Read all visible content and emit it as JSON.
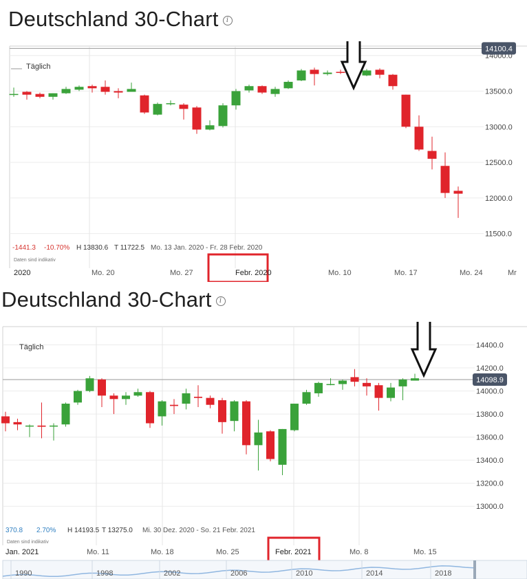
{
  "charts": [
    {
      "heading": "Deutschland 30-Chart",
      "period_label": "Täglich",
      "stats": {
        "change": "-1441.3",
        "change_pct": "-10.70%",
        "high": "H 13830.6",
        "low": "T 11722.5",
        "range": "Mo. 13 Jan. 2020 - Fr. 28 Febr. 2020"
      },
      "data_note": "Daten sind indikativ",
      "current_price_label": "14100.4",
      "highlight_label": "Febr. 2020",
      "x_labels": [
        "2020",
        "Mo. 20",
        "Mo. 27",
        "Febr. 2020",
        "Mo. 10",
        "Mo. 17",
        "Mo. 24",
        "Mr"
      ]
    },
    {
      "heading": "Deutschland 30-Chart",
      "period_label": "Täglich",
      "stats": {
        "change": "370.8",
        "change_pct": "2.70%",
        "high": "H 14193.5",
        "low": "T 13275.0",
        "range": "Mi. 30 Dez. 2020 - So. 21 Febr. 2021"
      },
      "data_note": "Daten sind indikativ",
      "current_price_label": "14098.9",
      "highlight_label": "Febr. 2021",
      "x_labels": [
        "Jan. 2021",
        "Mo. 11",
        "Mo. 18",
        "Mo. 25",
        "Febr. 2021",
        "Mo. 8",
        "Mo. 15"
      ],
      "navigator_years": [
        "1990",
        "1998",
        "2002",
        "2006",
        "2010",
        "2014",
        "2018"
      ]
    }
  ],
  "chart_data": [
    {
      "type": "candlestick",
      "title": "Deutschland 30-Chart",
      "period": "Täglich",
      "x_range": [
        "2020-01-13",
        "2020-02-28"
      ],
      "ylim": [
        11400,
        14200
      ],
      "y_ticks": [
        11500,
        12000,
        12500,
        13000,
        13500,
        14000
      ],
      "reference_line": 14100.4,
      "grid": true,
      "candles": [
        {
          "x": "2020-01-13",
          "open": 13450,
          "high": 13550,
          "low": 13420,
          "close": 13460
        },
        {
          "x": "2020-01-14",
          "open": 13490,
          "high": 13500,
          "low": 13380,
          "close": 13450
        },
        {
          "x": "2020-01-15",
          "open": 13460,
          "high": 13480,
          "low": 13400,
          "close": 13420
        },
        {
          "x": "2020-01-16",
          "open": 13420,
          "high": 13470,
          "low": 13380,
          "close": 13470
        },
        {
          "x": "2020-01-17",
          "open": 13470,
          "high": 13560,
          "low": 13460,
          "close": 13530
        },
        {
          "x": "2020-01-20",
          "open": 13520,
          "high": 13580,
          "low": 13500,
          "close": 13560
        },
        {
          "x": "2020-01-21",
          "open": 13570,
          "high": 13590,
          "low": 13480,
          "close": 13540
        },
        {
          "x": "2020-01-22",
          "open": 13560,
          "high": 13650,
          "low": 13450,
          "close": 13490
        },
        {
          "x": "2020-01-23",
          "open": 13500,
          "high": 13540,
          "low": 13400,
          "close": 13480
        },
        {
          "x": "2020-01-24",
          "open": 13490,
          "high": 13620,
          "low": 13490,
          "close": 13530
        },
        {
          "x": "2020-01-27",
          "open": 13440,
          "high": 13450,
          "low": 13180,
          "close": 13200
        },
        {
          "x": "2020-01-28",
          "open": 13170,
          "high": 13340,
          "low": 13160,
          "close": 13320
        },
        {
          "x": "2020-01-29",
          "open": 13320,
          "high": 13370,
          "low": 13300,
          "close": 13330
        },
        {
          "x": "2020-01-30",
          "open": 13310,
          "high": 13330,
          "low": 13100,
          "close": 13250
        },
        {
          "x": "2020-01-31",
          "open": 13270,
          "high": 13290,
          "low": 12900,
          "close": 12960
        },
        {
          "x": "2020-02-03",
          "open": 12960,
          "high": 13090,
          "low": 12950,
          "close": 13020
        },
        {
          "x": "2020-02-04",
          "open": 13010,
          "high": 13330,
          "low": 12990,
          "close": 13300
        },
        {
          "x": "2020-02-05",
          "open": 13300,
          "high": 13530,
          "low": 13240,
          "close": 13500
        },
        {
          "x": "2020-02-06",
          "open": 13510,
          "high": 13590,
          "low": 13480,
          "close": 13570
        },
        {
          "x": "2020-02-07",
          "open": 13570,
          "high": 13580,
          "low": 13460,
          "close": 13480
        },
        {
          "x": "2020-02-10",
          "open": 13460,
          "high": 13560,
          "low": 13420,
          "close": 13530
        },
        {
          "x": "2020-02-11",
          "open": 13540,
          "high": 13650,
          "low": 13530,
          "close": 13630
        },
        {
          "x": "2020-02-12",
          "open": 13650,
          "high": 13810,
          "low": 13640,
          "close": 13790
        },
        {
          "x": "2020-02-13",
          "open": 13800,
          "high": 13830,
          "low": 13580,
          "close": 13740
        },
        {
          "x": "2020-02-14",
          "open": 13740,
          "high": 13790,
          "low": 13720,
          "close": 13760
        },
        {
          "x": "2020-02-17",
          "open": 13770,
          "high": 13800,
          "low": 13740,
          "close": 13760
        },
        {
          "x": "2020-02-18",
          "open": 13760,
          "high": 13780,
          "low": 13670,
          "close": 13720
        },
        {
          "x": "2020-02-19",
          "open": 13720,
          "high": 13810,
          "low": 13710,
          "close": 13790
        },
        {
          "x": "2020-02-20",
          "open": 13800,
          "high": 13820,
          "low": 13680,
          "close": 13730
        },
        {
          "x": "2020-02-21",
          "open": 13730,
          "high": 13740,
          "low": 13520,
          "close": 13570
        },
        {
          "x": "2020-02-24",
          "open": 13450,
          "high": 13450,
          "low": 12980,
          "close": 13000
        },
        {
          "x": "2020-02-25",
          "open": 13000,
          "high": 13160,
          "low": 12660,
          "close": 12680
        },
        {
          "x": "2020-02-26",
          "open": 12660,
          "high": 12860,
          "low": 12400,
          "close": 12550
        },
        {
          "x": "2020-02-27",
          "open": 12450,
          "high": 12640,
          "low": 12000,
          "close": 12070
        },
        {
          "x": "2020-02-28",
          "open": 12100,
          "high": 12160,
          "low": 11720,
          "close": 12060
        }
      ]
    },
    {
      "type": "candlestick",
      "title": "Deutschland 30-Chart",
      "period": "Täglich",
      "x_range": [
        "2020-12-30",
        "2021-02-21"
      ],
      "ylim": [
        12900,
        14600
      ],
      "y_ticks": [
        13000,
        13200,
        13400,
        13600,
        13800,
        14000,
        14200,
        14400
      ],
      "reference_line": 14098.9,
      "grid": true,
      "candles": [
        {
          "x": "2020-12-30",
          "open": 13780,
          "high": 13820,
          "low": 13650,
          "close": 13720
        },
        {
          "x": "2020-12-31",
          "open": 13730,
          "high": 13760,
          "low": 13660,
          "close": 13710
        },
        {
          "x": "2021-01-01",
          "open": 13700,
          "high": 13710,
          "low": 13600,
          "close": 13700
        },
        {
          "x": "2021-01-04",
          "open": 13700,
          "high": 13900,
          "low": 13590,
          "close": 13690
        },
        {
          "x": "2021-01-05",
          "open": 13700,
          "high": 13720,
          "low": 13570,
          "close": 13700
        },
        {
          "x": "2021-01-06",
          "open": 13710,
          "high": 13900,
          "low": 13690,
          "close": 13890
        },
        {
          "x": "2021-01-07",
          "open": 13900,
          "high": 14010,
          "low": 13880,
          "close": 14000
        },
        {
          "x": "2021-01-08",
          "open": 14000,
          "high": 14130,
          "low": 13990,
          "close": 14110
        },
        {
          "x": "2021-01-11",
          "open": 14100,
          "high": 14110,
          "low": 13860,
          "close": 13960
        },
        {
          "x": "2021-01-12",
          "open": 13960,
          "high": 13980,
          "low": 13800,
          "close": 13930
        },
        {
          "x": "2021-01-13",
          "open": 13930,
          "high": 13990,
          "low": 13880,
          "close": 13960
        },
        {
          "x": "2021-01-14",
          "open": 13960,
          "high": 14020,
          "low": 13950,
          "close": 13990
        },
        {
          "x": "2021-01-15",
          "open": 13990,
          "high": 14000,
          "low": 13680,
          "close": 13720
        },
        {
          "x": "2021-01-18",
          "open": 13780,
          "high": 13920,
          "low": 13700,
          "close": 13910
        },
        {
          "x": "2021-01-19",
          "open": 13880,
          "high": 13930,
          "low": 13800,
          "close": 13870
        },
        {
          "x": "2021-01-20",
          "open": 13890,
          "high": 14020,
          "low": 13840,
          "close": 13980
        },
        {
          "x": "2021-01-21",
          "open": 13950,
          "high": 14050,
          "low": 13860,
          "close": 13940
        },
        {
          "x": "2021-01-22",
          "open": 13940,
          "high": 13960,
          "low": 13850,
          "close": 13880
        },
        {
          "x": "2021-01-25",
          "open": 13920,
          "high": 13940,
          "low": 13630,
          "close": 13730
        },
        {
          "x": "2021-01-26",
          "open": 13740,
          "high": 13920,
          "low": 13650,
          "close": 13910
        },
        {
          "x": "2021-01-27",
          "open": 13910,
          "high": 13920,
          "low": 13450,
          "close": 13530
        },
        {
          "x": "2021-01-28",
          "open": 13530,
          "high": 13750,
          "low": 13310,
          "close": 13640
        },
        {
          "x": "2021-01-29",
          "open": 13650,
          "high": 13660,
          "low": 13390,
          "close": 13410
        },
        {
          "x": "2021-02-01",
          "open": 13360,
          "high": 13670,
          "low": 13270,
          "close": 13670
        },
        {
          "x": "2021-02-02",
          "open": 13660,
          "high": 13890,
          "low": 13650,
          "close": 13890
        },
        {
          "x": "2021-02-03",
          "open": 13890,
          "high": 14010,
          "low": 13880,
          "close": 13990
        },
        {
          "x": "2021-02-04",
          "open": 13980,
          "high": 14080,
          "low": 13950,
          "close": 14070
        },
        {
          "x": "2021-02-05",
          "open": 14060,
          "high": 14110,
          "low": 14050,
          "close": 14060
        },
        {
          "x": "2021-02-08",
          "open": 14060,
          "high": 14100,
          "low": 14010,
          "close": 14090
        },
        {
          "x": "2021-02-09",
          "open": 14120,
          "high": 14190,
          "low": 14040,
          "close": 14080
        },
        {
          "x": "2021-02-10",
          "open": 14070,
          "high": 14110,
          "low": 13960,
          "close": 14040
        },
        {
          "x": "2021-02-11",
          "open": 14050,
          "high": 14070,
          "low": 13830,
          "close": 13940
        },
        {
          "x": "2021-02-12",
          "open": 13940,
          "high": 14070,
          "low": 13910,
          "close": 14030
        },
        {
          "x": "2021-02-15",
          "open": 14040,
          "high": 14110,
          "low": 13920,
          "close": 14100
        },
        {
          "x": "2021-02-16",
          "open": 14090,
          "high": 14150,
          "low": 14090,
          "close": 14110
        }
      ]
    }
  ]
}
